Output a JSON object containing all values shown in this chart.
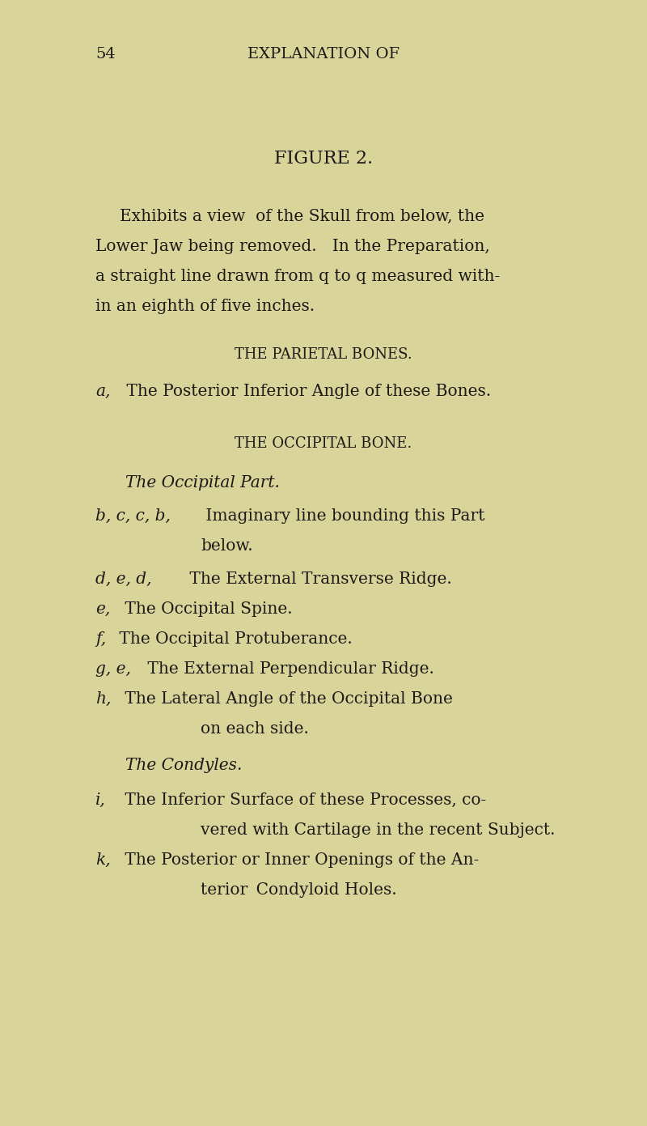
{
  "background_color": "#d9d49a",
  "page_number": "54",
  "header": "EXPLANATION OF",
  "figure_title": "FIGURE 2.",
  "text_color": "#1c1a16",
  "figsize": [
    8.0,
    13.91
  ],
  "dpi": 100
}
